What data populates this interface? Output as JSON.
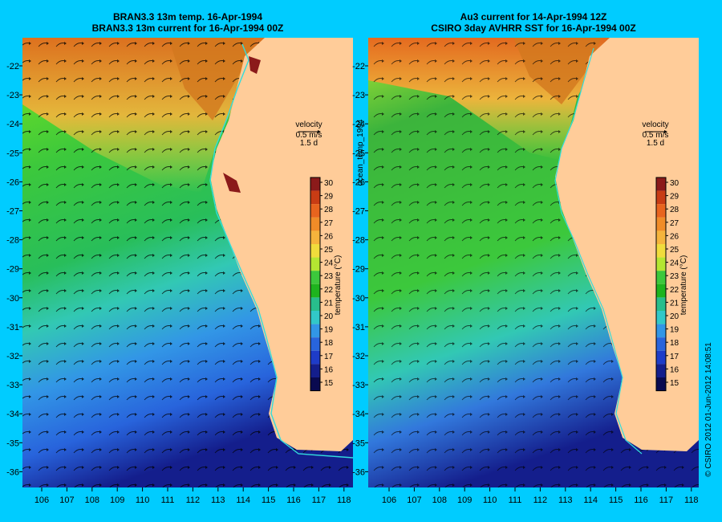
{
  "left_panel": {
    "title_line1": "BRAN3.3 13m temp. 16-Apr-1994",
    "title_line2": "BRAN3.3 13m current for 16-Apr-1994 00Z"
  },
  "right_panel": {
    "title_line1": "Au3 current for 14-Apr-1994 12Z",
    "title_line2": "CSIRO 3day AVHRR SST for 16-Apr-1994 00Z"
  },
  "y_ticks": [
    "-22",
    "-23",
    "-24",
    "-25",
    "-26",
    "-27",
    "-28",
    "-29",
    "-30",
    "-31",
    "-32",
    "-33",
    "-34",
    "-35",
    "-36"
  ],
  "x_ticks": [
    "106",
    "107",
    "108",
    "109",
    "110",
    "111",
    "112",
    "113",
    "114",
    "115",
    "116",
    "117",
    "118"
  ],
  "velocity_legend": {
    "label": "velocity",
    "speed": "0.5 m/s",
    "period": "1.5 d"
  },
  "colorbar": {
    "ticks": [
      "30",
      "29",
      "28",
      "27",
      "26",
      "25",
      "24",
      "23",
      "22",
      "21",
      "20",
      "19",
      "18",
      "17",
      "16",
      "15"
    ],
    "label": "temperature (°C)",
    "colors": [
      "#8b1a1a",
      "#c83c14",
      "#e8641e",
      "#f08c28",
      "#f5b43c",
      "#f0dc3c",
      "#b4e632",
      "#3cc83c",
      "#1eb41e",
      "#28be8c",
      "#32c8c8",
      "#3296e6",
      "#2864dc",
      "#1e3cc8",
      "#141e8c",
      "#0a0a50"
    ]
  },
  "middle_label": "ocean_temp_1994",
  "credit": "© CSIRO 2012  01-Jun-2012 14:08:51"
}
